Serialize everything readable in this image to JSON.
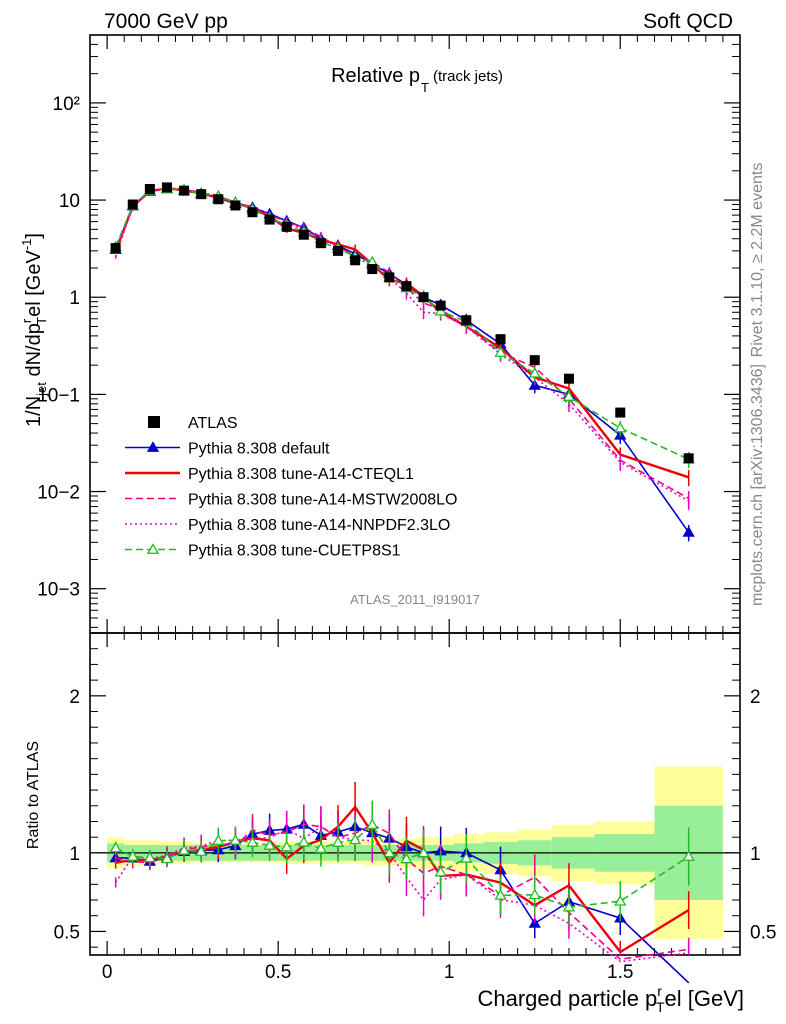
{
  "header": {
    "left": "7000 GeV pp",
    "right": "Soft QCD"
  },
  "side_labels": {
    "rivet": "Rivet 3.1.10, ≥ 2.2M events",
    "mcplots": "mcplots.cern.ch [arXiv:1306.3436]"
  },
  "chart_data": {
    "type": "scatter",
    "title": "Relative p",
    "title_sub": "T",
    "title_suffix": "(track jets)",
    "analysis_id": "ATLAS_2011_I919017",
    "xlabel": "Charged particle p",
    "xlabel_sub": "T",
    "xlabel_sup": "r",
    "xlabel_suffix": "el [GeV]",
    "ylabel": "1/N",
    "ylabel_sub1": "jet",
    "ylabel_mid": " dN/dp",
    "ylabel_sup": "r",
    "ylabel_sub2": "T",
    "ylabel_suffix": "el [GeV",
    "ylabel_sup2": "-1",
    "ylabel_end": "]",
    "ratio_ylabel": "Ratio to ATLAS",
    "xlim": [
      -0.05,
      1.85
    ],
    "ylim": [
      0.00035,
      500
    ],
    "yscale": "log",
    "ratio_ylim": [
      0.35,
      2.4
    ],
    "x_ticks": [
      "0",
      "0.5",
      "1",
      "1.5"
    ],
    "y_ticks": [
      "10−3",
      "10−2",
      "10−1",
      "1",
      "10",
      "10²"
    ],
    "ratio_ticks": [
      "0.5",
      "1",
      "2"
    ],
    "x": [
      0.025,
      0.075,
      0.125,
      0.175,
      0.225,
      0.275,
      0.325,
      0.375,
      0.425,
      0.475,
      0.525,
      0.575,
      0.625,
      0.675,
      0.725,
      0.775,
      0.825,
      0.875,
      0.925,
      0.975,
      1.05,
      1.15,
      1.25,
      1.35,
      1.5,
      1.7
    ],
    "uncertainty_band": {
      "inner": [
        0.06,
        0.05,
        0.05,
        0.05,
        0.05,
        0.05,
        0.05,
        0.05,
        0.05,
        0.05,
        0.05,
        0.05,
        0.05,
        0.05,
        0.05,
        0.05,
        0.05,
        0.05,
        0.05,
        0.05,
        0.06,
        0.07,
        0.08,
        0.1,
        0.12,
        0.3
      ],
      "outer": [
        0.1,
        0.08,
        0.08,
        0.07,
        0.07,
        0.06,
        0.06,
        0.06,
        0.06,
        0.06,
        0.07,
        0.07,
        0.07,
        0.07,
        0.07,
        0.08,
        0.08,
        0.09,
        0.1,
        0.1,
        0.12,
        0.13,
        0.15,
        0.18,
        0.2,
        0.55
      ]
    },
    "series": [
      {
        "name": "ATLAS",
        "color": "#000000",
        "style": "data",
        "values": [
          3.2,
          9.0,
          13.0,
          13.5,
          12.5,
          11.5,
          10.2,
          8.8,
          7.5,
          6.3,
          5.3,
          4.4,
          3.6,
          3.0,
          2.4,
          1.95,
          1.6,
          1.3,
          1.0,
          0.82,
          0.58,
          0.37,
          0.225,
          0.145,
          0.065,
          0.022
        ]
      },
      {
        "name": "Pythia 8.308 default",
        "color": "#0000cc",
        "style": "solid-triangle",
        "values": [
          3.1,
          8.7,
          12.3,
          13.1,
          12.6,
          11.7,
          10.4,
          9.2,
          8.4,
          7.2,
          6.1,
          5.2,
          4.0,
          3.4,
          2.8,
          2.2,
          1.75,
          1.35,
          1.0,
          0.83,
          0.58,
          0.33,
          0.124,
          0.1,
          0.038,
          0.0038
        ]
      },
      {
        "name": "Pythia 8.308 tune-A14-CTEQL1",
        "color": "#ee0000",
        "style": "solid",
        "values": [
          3.0,
          8.6,
          12.4,
          13.2,
          12.6,
          11.7,
          10.6,
          9.4,
          8.2,
          6.8,
          5.1,
          4.6,
          3.9,
          3.5,
          3.1,
          2.2,
          1.5,
          1.4,
          1.02,
          0.7,
          0.5,
          0.3,
          0.15,
          0.115,
          0.024,
          0.014
        ]
      },
      {
        "name": "Pythia 8.308 tune-A14-MSTW2008LO",
        "color": "#ee0088",
        "style": "dashed",
        "values": [
          3.1,
          8.5,
          12.2,
          13.2,
          12.8,
          11.9,
          10.8,
          9.2,
          8.6,
          7.0,
          6.0,
          5.2,
          4.2,
          3.3,
          2.7,
          2.3,
          1.8,
          1.25,
          0.87,
          0.75,
          0.5,
          0.27,
          0.19,
          0.09,
          0.021,
          0.0085
        ]
      },
      {
        "name": "Pythia 8.308 tune-A14-NNPDF2.3LO",
        "color": "#ee00cc",
        "style": "dotted",
        "values": [
          2.6,
          8.8,
          12.5,
          13.3,
          12.9,
          12.0,
          11.0,
          9.5,
          8.2,
          6.9,
          6.1,
          4.8,
          4.2,
          3.3,
          2.6,
          2.1,
          1.6,
          1.1,
          0.7,
          0.68,
          0.5,
          0.26,
          0.15,
          0.08,
          0.02,
          0.008
        ]
      },
      {
        "name": "Pythia 8.308 tune-CUETP8S1",
        "color": "#22bb22",
        "style": "dashed-open-triangle",
        "values": [
          3.3,
          8.8,
          12.6,
          13.0,
          12.7,
          11.6,
          11.0,
          9.5,
          8.0,
          6.6,
          5.5,
          4.7,
          3.7,
          3.2,
          2.6,
          2.3,
          1.6,
          1.25,
          1.0,
          0.72,
          0.56,
          0.27,
          0.165,
          0.095,
          0.045,
          0.0215
        ]
      }
    ]
  }
}
